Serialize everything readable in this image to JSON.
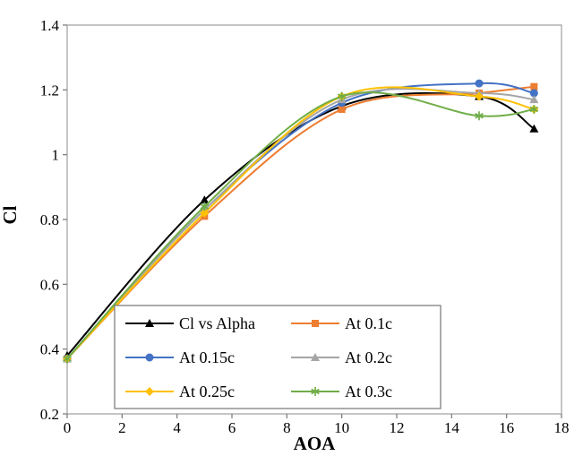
{
  "chart_data": {
    "type": "line",
    "title": "",
    "xlabel": "AOA",
    "ylabel": "Cl",
    "xlim": [
      0,
      18
    ],
    "ylim": [
      0.2,
      1.4
    ],
    "xticks": [
      0,
      2,
      4,
      6,
      8,
      10,
      12,
      14,
      16,
      18
    ],
    "yticks": [
      0.2,
      0.4,
      0.6,
      0.8,
      1,
      1.2,
      1.4
    ],
    "grid": false,
    "legend_position": "inside-bottom-center",
    "x": [
      0,
      5,
      10,
      15,
      17
    ],
    "series": [
      {
        "name": "Cl vs Alpha",
        "color": "#000000",
        "marker": "triangle",
        "values": [
          0.38,
          0.86,
          1.15,
          1.18,
          1.08
        ]
      },
      {
        "name": "At 0.1c",
        "color": "#ED7D31",
        "marker": "square",
        "values": [
          0.37,
          0.81,
          1.14,
          1.19,
          1.21
        ]
      },
      {
        "name": "At 0.15c",
        "color": "#4472C4",
        "marker": "circle",
        "values": [
          0.37,
          0.83,
          1.16,
          1.22,
          1.19
        ]
      },
      {
        "name": "At 0.2c",
        "color": "#A5A5A5",
        "marker": "triangle",
        "values": [
          0.37,
          0.83,
          1.17,
          1.19,
          1.17
        ]
      },
      {
        "name": "At 0.25c",
        "color": "#FFC000",
        "marker": "diamond",
        "values": [
          0.37,
          0.82,
          1.18,
          1.18,
          1.14
        ]
      },
      {
        "name": "At 0.3c",
        "color": "#70AD47",
        "marker": "asterisk",
        "values": [
          0.37,
          0.84,
          1.18,
          1.12,
          1.14
        ]
      }
    ],
    "frame_color": "#A6A6A6",
    "axis_color": "#808080"
  }
}
